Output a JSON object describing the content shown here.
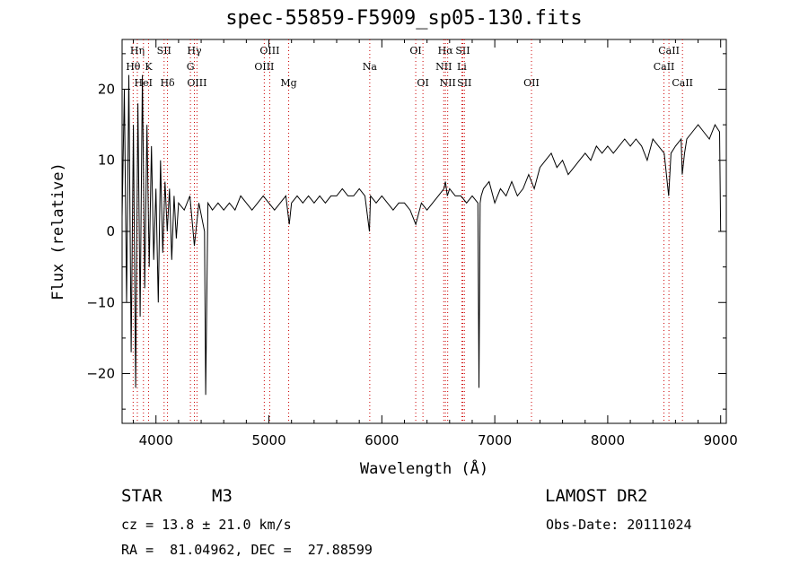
{
  "chart_data": {
    "type": "line",
    "title": "spec-55859-F5909_sp05-130.fits",
    "xlabel": "Wavelength (Å)",
    "ylabel": "Flux (relative)",
    "xlim": [
      3700,
      9050
    ],
    "ylim": [
      -27,
      27
    ],
    "xticks": [
      4000,
      5000,
      6000,
      7000,
      8000,
      9000
    ],
    "yticks": [
      -20,
      -10,
      0,
      10,
      20
    ],
    "grid": false,
    "line_marker_color": "#cc0000",
    "series": [
      {
        "x": [
          3700,
          3720,
          3740,
          3760,
          3780,
          3800,
          3820,
          3840,
          3860,
          3880,
          3900,
          3920,
          3940,
          3960,
          3980,
          4000,
          4020,
          4040,
          4060,
          4080,
          4100,
          4120,
          4140,
          4160,
          4180,
          4200,
          4250,
          4300,
          4340,
          4380,
          4430,
          4440,
          4460,
          4500,
          4550,
          4600,
          4650,
          4700,
          4750,
          4800,
          4850,
          4900,
          4950,
          5000,
          5050,
          5100,
          5150,
          5180,
          5200,
          5250,
          5300,
          5350,
          5400,
          5450,
          5500,
          5550,
          5600,
          5650,
          5700,
          5750,
          5800,
          5850,
          5890,
          5900,
          5950,
          6000,
          6050,
          6100,
          6150,
          6200,
          6250,
          6300,
          6350,
          6400,
          6450,
          6500,
          6550,
          6563,
          6580,
          6600,
          6650,
          6700,
          6750,
          6800,
          6850,
          6860,
          6870,
          6880,
          6900,
          6950,
          7000,
          7050,
          7100,
          7150,
          7200,
          7250,
          7300,
          7350,
          7400,
          7450,
          7500,
          7550,
          7600,
          7650,
          7700,
          7750,
          7800,
          7850,
          7900,
          7950,
          8000,
          8050,
          8100,
          8150,
          8200,
          8250,
          8300,
          8350,
          8400,
          8450,
          8500,
          8540,
          8560,
          8600,
          8650,
          8660,
          8680,
          8700,
          8750,
          8800,
          8850,
          8900,
          8950,
          8990,
          9000
        ],
        "y": [
          2,
          20,
          -10,
          22,
          -17,
          15,
          -22,
          18,
          -12,
          22,
          -8,
          15,
          -5,
          12,
          -4,
          6,
          -10,
          10,
          -3,
          7,
          0,
          6,
          -4,
          5,
          -1,
          4,
          3,
          5,
          -2,
          4,
          0,
          -23,
          4,
          3,
          4,
          3,
          4,
          3,
          5,
          4,
          3,
          4,
          5,
          4,
          3,
          4,
          5,
          1,
          4,
          5,
          4,
          5,
          4,
          5,
          4,
          5,
          5,
          6,
          5,
          5,
          6,
          5,
          0,
          5,
          4,
          5,
          4,
          3,
          4,
          4,
          3,
          1,
          4,
          3,
          4,
          5,
          6,
          7,
          5,
          6,
          5,
          5,
          4,
          5,
          4,
          -22,
          4,
          5,
          6,
          7,
          4,
          6,
          5,
          7,
          5,
          6,
          8,
          6,
          9,
          10,
          11,
          9,
          10,
          8,
          9,
          10,
          11,
          10,
          12,
          11,
          12,
          11,
          12,
          13,
          12,
          13,
          12,
          10,
          13,
          12,
          11,
          5,
          11,
          12,
          13,
          8,
          11,
          13,
          14,
          15,
          14,
          13,
          15,
          14,
          0
        ]
      }
    ],
    "lines": [
      {
        "name": "Hη",
        "x": 3835,
        "row": 0
      },
      {
        "name": "Hθ",
        "x": 3798,
        "row": 1
      },
      {
        "name": "HeI",
        "x": 3889,
        "row": 2
      },
      {
        "name": "K",
        "x": 3934,
        "row": 1
      },
      {
        "name": "SII",
        "x": 4072,
        "row": 0
      },
      {
        "name": "Hδ",
        "x": 4102,
        "row": 2
      },
      {
        "name": "Hγ",
        "x": 4340,
        "row": 0
      },
      {
        "name": "G",
        "x": 4305,
        "row": 1
      },
      {
        "name": "OIII",
        "x": 4363,
        "row": 2
      },
      {
        "name": "OIII",
        "x": 5007,
        "row": 0
      },
      {
        "name": "OIII",
        "x": 4959,
        "row": 1
      },
      {
        "name": "Mg",
        "x": 5175,
        "row": 2
      },
      {
        "name": "Na",
        "x": 5893,
        "row": 1
      },
      {
        "name": "OI",
        "x": 6300,
        "row": 0
      },
      {
        "name": "OI",
        "x": 6364,
        "row": 2
      },
      {
        "name": "Hα",
        "x": 6563,
        "row": 0
      },
      {
        "name": "NII",
        "x": 6548,
        "row": 1
      },
      {
        "name": "NII",
        "x": 6583,
        "row": 2
      },
      {
        "name": "SII",
        "x": 6717,
        "row": 0
      },
      {
        "name": "Li",
        "x": 6708,
        "row": 1
      },
      {
        "name": "SII",
        "x": 6731,
        "row": 2
      },
      {
        "name": "OII",
        "x": 7325,
        "row": 2
      },
      {
        "name": "CaII",
        "x": 8542,
        "row": 0
      },
      {
        "name": "CaII",
        "x": 8498,
        "row": 1
      },
      {
        "name": "CaII",
        "x": 8662,
        "row": 2
      }
    ]
  },
  "info": {
    "class_label": "STAR",
    "subclass": "M3",
    "survey": "LAMOST DR2",
    "cz": "cz = 13.8 ± 21.0 km/s",
    "obs_date": "Obs-Date: 20111024",
    "coords": "RA =  81.04962, DEC =  27.88599"
  }
}
